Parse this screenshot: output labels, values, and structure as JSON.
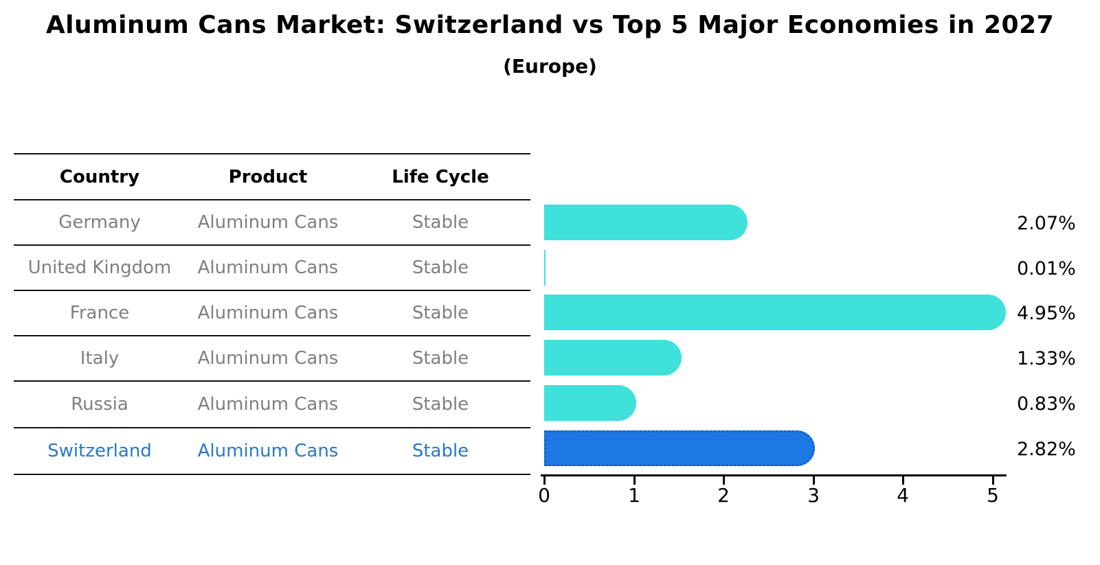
{
  "title": "Aluminum Cans Market: Switzerland vs Top 5 Major Economies in 2027",
  "subtitle": "(Europe)",
  "table": {
    "headers": [
      "Country",
      "Product",
      "Life Cycle"
    ],
    "rows": [
      {
        "country": "Germany",
        "product": "Aluminum Cans",
        "life_cycle": "Stable",
        "highlight": false
      },
      {
        "country": "United Kingdom",
        "product": "Aluminum Cans",
        "life_cycle": "Stable",
        "highlight": false
      },
      {
        "country": "France",
        "product": "Aluminum Cans",
        "life_cycle": "Stable",
        "highlight": false
      },
      {
        "country": "Italy",
        "product": "Aluminum Cans",
        "life_cycle": "Stable",
        "highlight": false
      },
      {
        "country": "Russia",
        "product": "Aluminum Cans",
        "life_cycle": "Stable",
        "highlight": false
      },
      {
        "country": "Switzerland",
        "product": "Aluminum Cans",
        "life_cycle": "Stable",
        "highlight": true
      }
    ]
  },
  "chart_data": {
    "type": "bar",
    "orientation": "horizontal",
    "title": "Aluminum Cans Market: Switzerland vs Top 5 Major Economies in 2027",
    "subtitle": "(Europe)",
    "categories": [
      "Germany",
      "United Kingdom",
      "France",
      "Italy",
      "Russia",
      "Switzerland"
    ],
    "values": [
      2.07,
      0.01,
      4.95,
      1.33,
      0.83,
      2.82
    ],
    "value_labels": [
      "2.07%",
      "0.01%",
      "4.95%",
      "1.33%",
      "0.83%",
      "2.82%"
    ],
    "unit": "%",
    "xlabel": "",
    "ylabel": "",
    "xticks": [
      0,
      1,
      2,
      3,
      4,
      5
    ],
    "xlim": [
      0,
      5.15
    ],
    "grid": false,
    "legend": false,
    "highlight_index": 5,
    "bar_color": "#40e0db",
    "highlight_bar_color": "#1e78e4",
    "highlight_border_color": "#1261c9",
    "highlight_text_color": "#2878c8",
    "text_color": "#7f7f7f"
  }
}
